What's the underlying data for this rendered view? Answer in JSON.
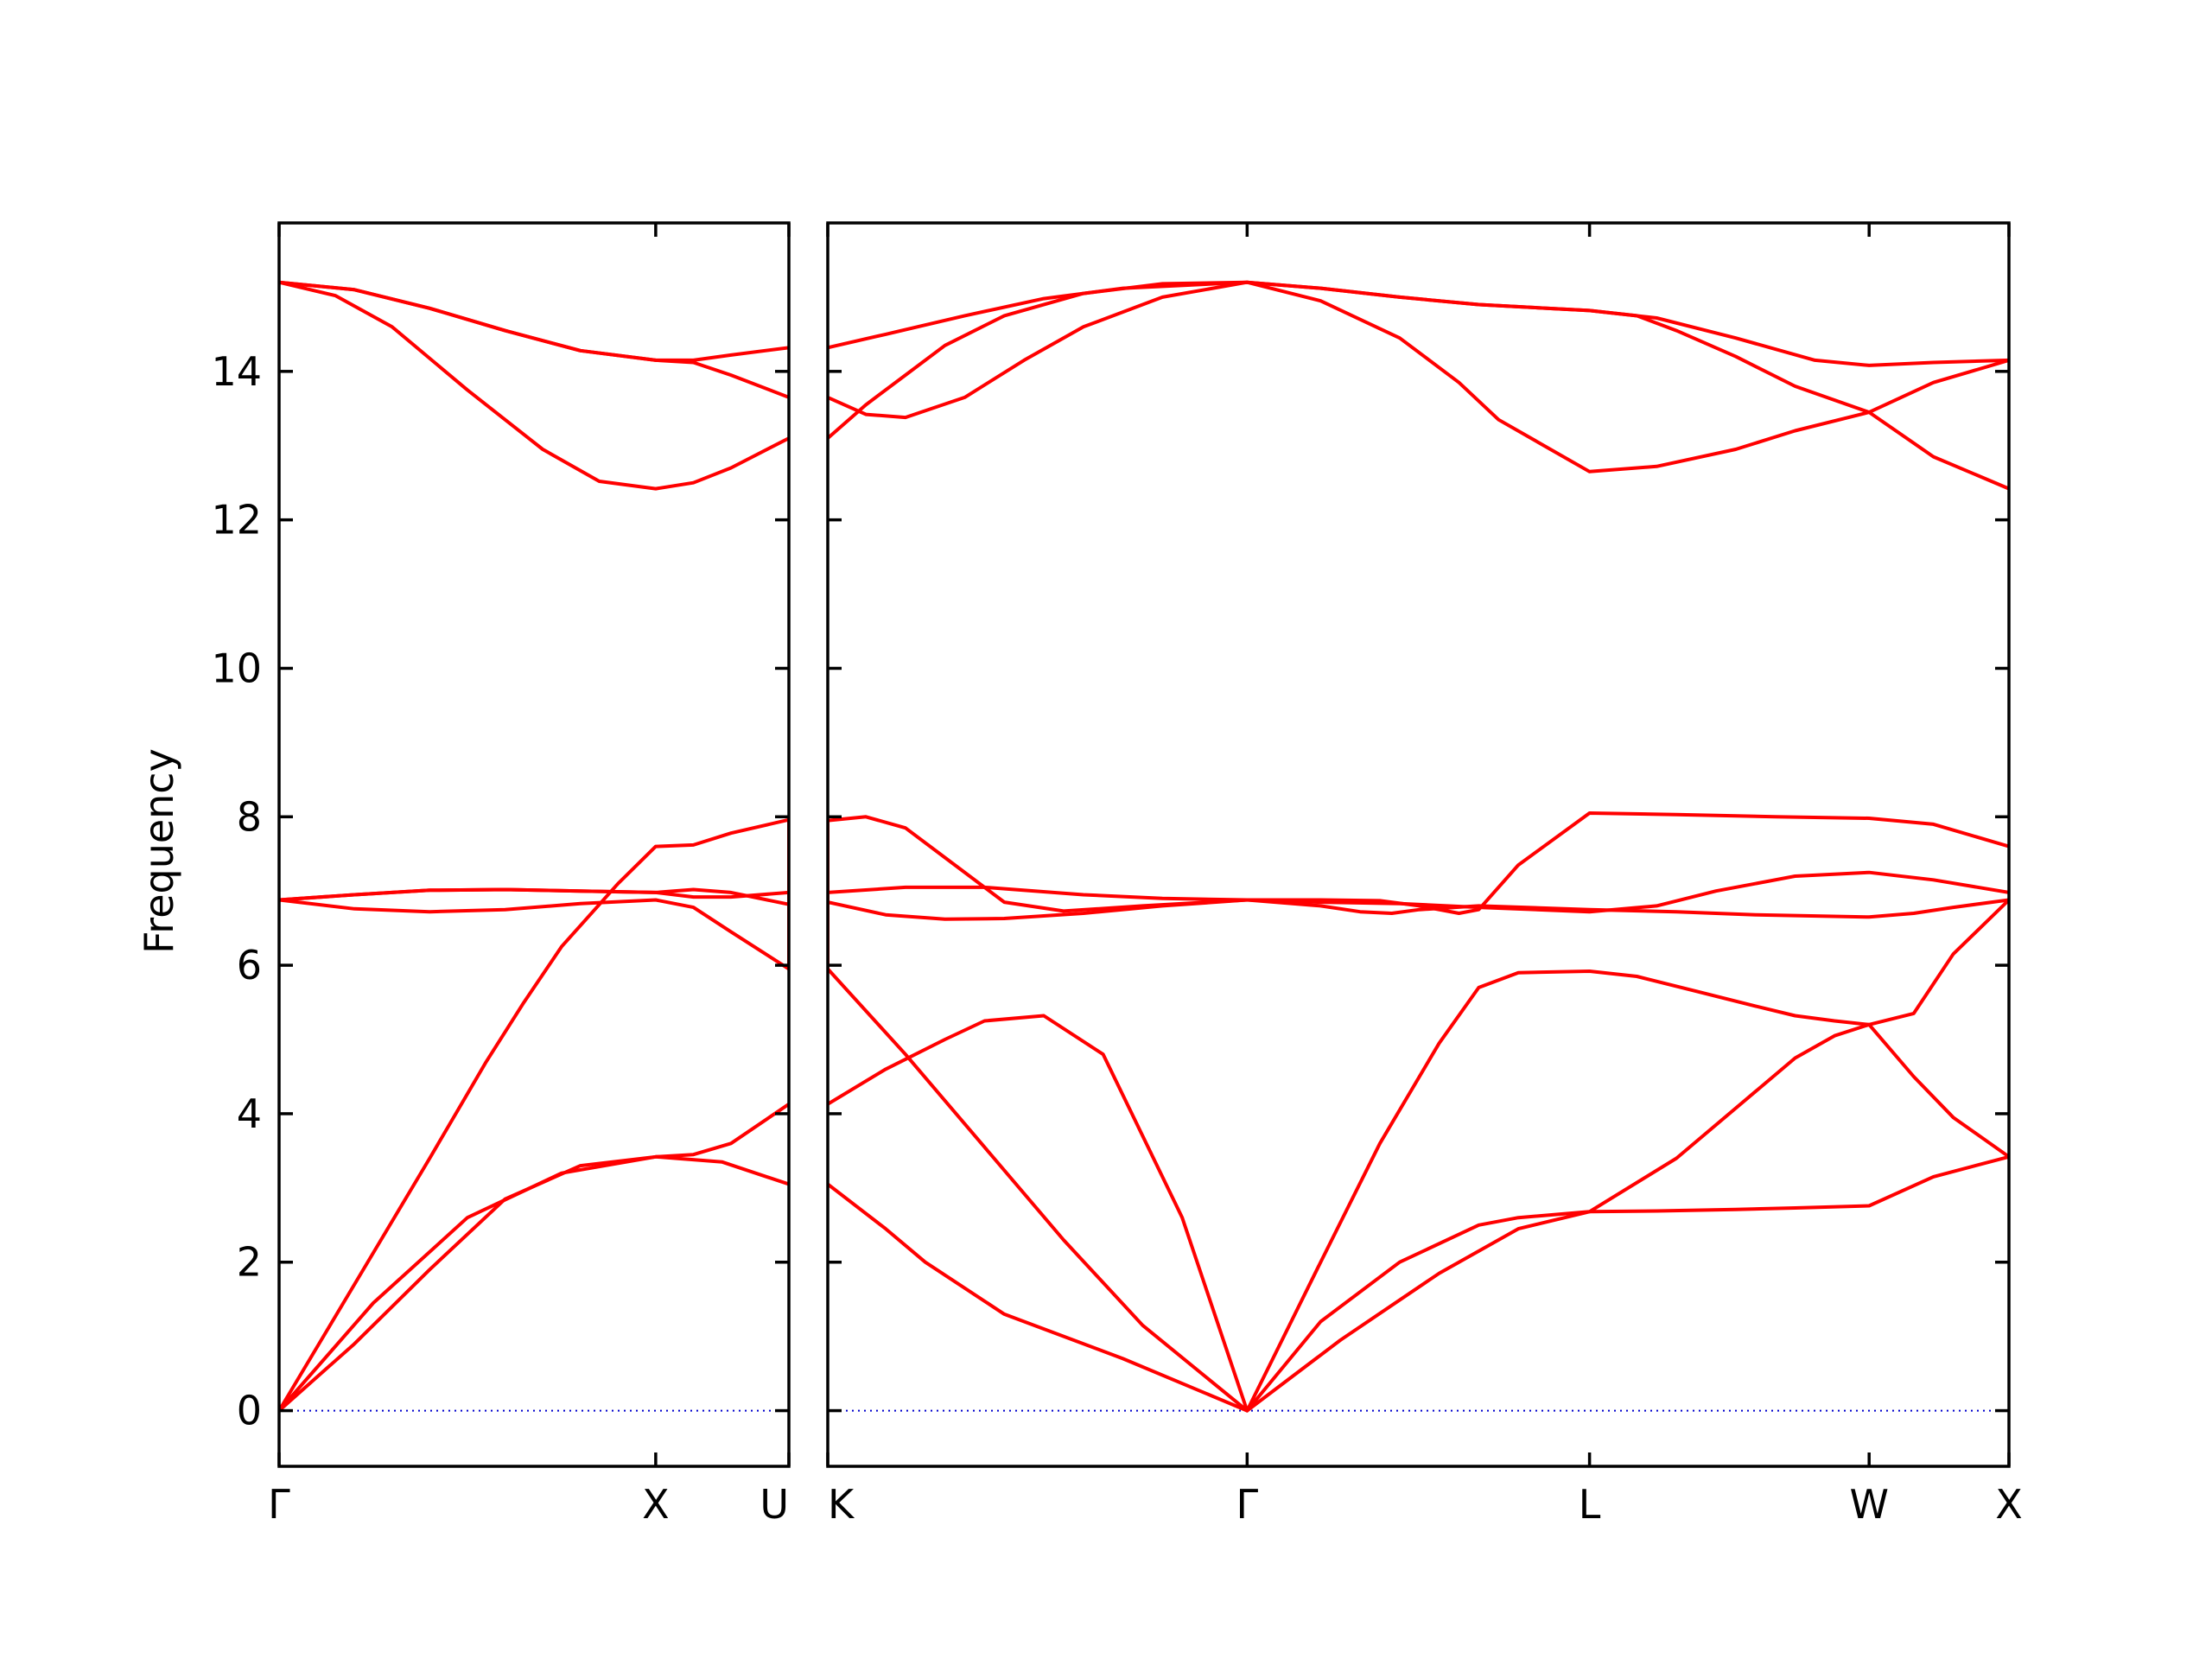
{
  "chart_data": {
    "type": "line",
    "title": "",
    "ylabel": "Frequency",
    "xlabel": "",
    "ylim": [
      -0.75,
      16.0
    ],
    "yticks": [
      0,
      2,
      4,
      6,
      8,
      10,
      12,
      14
    ],
    "grid": false,
    "colors": {
      "bands": "#ff0000",
      "zero_line": "#0000cc",
      "axes": "#000000"
    },
    "segments": [
      {
        "from": "Γ",
        "to": "X",
        "xrange": [
          0.0,
          1.0
        ]
      },
      {
        "from": "X",
        "to": "U",
        "xrange": [
          1.0,
          1.3536
        ]
      },
      {
        "from": "K",
        "to": "Γ",
        "xrange": [
          1.3536,
          2.4142
        ]
      },
      {
        "from": "Γ",
        "to": "L",
        "xrange": [
          2.4142,
          3.2802
        ]
      },
      {
        "from": "L",
        "to": "W",
        "xrange": [
          3.2802,
          3.9873
        ]
      },
      {
        "from": "W",
        "to": "X",
        "xrange": [
          3.9873,
          4.3409
        ]
      }
    ],
    "panels": [
      {
        "xrange": [
          0.0,
          1.3536
        ],
        "ticks": [
          {
            "x": 0.0,
            "label": "Γ"
          },
          {
            "x": 1.0,
            "label": "X"
          },
          {
            "x": 1.3536,
            "label": "U"
          }
        ]
      },
      {
        "xrange": [
          1.3536,
          4.3409
        ],
        "ticks": [
          {
            "x": 1.3536,
            "label": "K"
          },
          {
            "x": 2.4142,
            "label": "Γ"
          },
          {
            "x": 3.2802,
            "label": "L"
          },
          {
            "x": 3.9873,
            "label": "W"
          },
          {
            "x": 4.3409,
            "label": "X"
          }
        ]
      }
    ],
    "series": [
      {
        "x": [
          0,
          0.25,
          0.5,
          0.75,
          1.0,
          1.1768,
          1.3536,
          1.3536,
          1.5,
          1.6,
          1.8,
          2.1,
          2.4142,
          2.65,
          2.9,
          3.1,
          3.2802,
          3.45,
          3.65,
          3.8,
          3.9873,
          4.15,
          4.3409
        ],
        "y": [
          0,
          1.45,
          2.6,
          3.2,
          3.42,
          3.35,
          3.05,
          3.05,
          2.45,
          2.0,
          1.3,
          0.7,
          0,
          0.95,
          1.85,
          2.45,
          2.68,
          2.69,
          2.71,
          2.73,
          2.76,
          3.15,
          3.42
        ]
      },
      {
        "x": [
          0,
          0.2,
          0.4,
          0.55,
          0.65,
          0.75,
          0.9,
          1.0,
          1.1,
          1.2,
          1.3536,
          1.3536,
          1.55,
          1.75,
          1.95,
          2.15,
          2.4142,
          2.6,
          2.75,
          2.9,
          3.0,
          3.1,
          3.2802,
          3.4,
          3.55,
          3.7,
          3.8,
          3.9,
          3.9873,
          4.1,
          4.2,
          4.3409
        ],
        "y": [
          0,
          1.7,
          3.4,
          4.7,
          5.5,
          6.25,
          7.1,
          7.6,
          7.62,
          7.78,
          7.96,
          5.95,
          4.8,
          3.55,
          2.3,
          1.15,
          0,
          2.0,
          3.6,
          4.95,
          5.7,
          5.9,
          5.92,
          5.85,
          5.65,
          5.45,
          5.32,
          5.25,
          5.2,
          5.35,
          6.15,
          6.88
        ]
      },
      {
        "x": [
          0,
          0.2,
          0.4,
          0.6,
          0.8,
          1.0,
          1.1,
          1.2,
          1.3536,
          1.3536,
          1.5,
          1.65,
          1.75,
          1.9,
          2.05,
          2.25,
          2.4142,
          2.6,
          2.8,
          3.0,
          3.1,
          3.2802,
          3.5,
          3.7,
          3.8,
          3.9,
          3.9873,
          4.1,
          4.2,
          4.3409
        ],
        "y": [
          0,
          0.9,
          1.9,
          2.85,
          3.3,
          3.42,
          3.45,
          3.6,
          4.13,
          4.13,
          4.6,
          5.0,
          5.25,
          5.32,
          4.8,
          2.6,
          0,
          1.2,
          2.0,
          2.5,
          2.6,
          2.68,
          3.4,
          4.3,
          4.75,
          5.05,
          5.2,
          4.5,
          3.95,
          3.42
        ]
      },
      {
        "x": [
          0,
          0.2,
          0.4,
          0.6,
          0.8,
          1.0,
          1.1,
          1.2,
          1.3536,
          1.3536,
          1.5,
          1.65,
          1.8,
          2.0,
          2.2,
          2.4142,
          2.6,
          2.7,
          2.78,
          2.85,
          3.0,
          3.2802,
          3.5,
          3.7,
          3.9873,
          4.1,
          4.2,
          4.3409
        ],
        "y": [
          6.88,
          6.76,
          6.72,
          6.75,
          6.83,
          6.88,
          6.78,
          6.45,
          5.95,
          6.85,
          6.68,
          6.62,
          6.63,
          6.7,
          6.8,
          6.88,
          6.8,
          6.72,
          6.7,
          6.75,
          6.8,
          6.75,
          6.72,
          6.68,
          6.65,
          6.7,
          6.78,
          6.88
        ]
      },
      {
        "x": [
          0,
          0.2,
          0.4,
          0.6,
          0.8,
          1.0,
          1.1,
          1.2,
          1.3536,
          1.3536,
          1.45,
          1.55,
          1.65,
          1.8,
          1.95,
          2.15,
          2.4142,
          2.6,
          2.75,
          2.85,
          2.95,
          3.0,
          3.1,
          3.2802,
          3.5,
          3.75,
          3.9873,
          4.15,
          4.3409
        ],
        "y": [
          6.88,
          6.95,
          7.01,
          7.02,
          7.0,
          6.98,
          7.02,
          6.98,
          6.82,
          7.95,
          8.0,
          7.85,
          7.45,
          6.85,
          6.73,
          6.8,
          6.88,
          6.88,
          6.87,
          6.8,
          6.7,
          6.75,
          7.35,
          8.05,
          8.03,
          8.0,
          7.98,
          7.9,
          7.6
        ]
      },
      {
        "x": [
          0,
          0.2,
          0.4,
          0.6,
          0.8,
          1.0,
          1.1,
          1.2,
          1.3536,
          1.3536,
          1.55,
          1.75,
          2.0,
          2.2,
          2.4142,
          2.6,
          2.8,
          3.0,
          3.2802,
          3.45,
          3.6,
          3.8,
          3.9873,
          4.15,
          4.3409
        ],
        "y": [
          6.88,
          6.95,
          7.01,
          7.02,
          7.0,
          6.98,
          6.92,
          6.92,
          6.98,
          6.98,
          7.05,
          7.05,
          6.95,
          6.9,
          6.88,
          6.85,
          6.83,
          6.78,
          6.72,
          6.8,
          7.0,
          7.2,
          7.25,
          7.15,
          6.98
        ]
      },
      {
        "x": [
          0,
          0.15,
          0.3,
          0.5,
          0.7,
          0.85,
          1.0,
          1.1,
          1.2,
          1.3536,
          1.3536,
          1.45,
          1.55,
          1.65,
          1.8,
          2.0,
          2.2,
          2.4142,
          2.6,
          2.8,
          2.95,
          3.05,
          3.2802,
          3.45,
          3.65,
          3.8,
          3.9873,
          4.15,
          4.3409
        ],
        "y": [
          15.2,
          15.02,
          14.6,
          13.75,
          12.95,
          12.52,
          12.42,
          12.5,
          12.7,
          13.1,
          13.1,
          13.55,
          13.95,
          14.35,
          14.75,
          15.05,
          15.18,
          15.2,
          14.95,
          14.45,
          13.85,
          13.35,
          12.65,
          12.72,
          12.95,
          13.2,
          13.45,
          12.85,
          12.42
        ]
      },
      {
        "x": [
          0,
          0.2,
          0.4,
          0.6,
          0.8,
          1.0,
          1.1,
          1.2,
          1.3536,
          1.3536,
          1.45,
          1.55,
          1.7,
          1.85,
          2.0,
          2.2,
          2.4142,
          2.6,
          2.8,
          3.0,
          3.2802,
          3.4,
          3.5,
          3.65,
          3.8,
          3.9873,
          4.15,
          4.3409
        ],
        "y": [
          15.2,
          15.1,
          14.85,
          14.55,
          14.28,
          14.15,
          14.12,
          13.95,
          13.65,
          13.65,
          13.42,
          13.38,
          13.65,
          14.15,
          14.6,
          15.0,
          15.2,
          15.12,
          15.0,
          14.9,
          14.82,
          14.75,
          14.55,
          14.2,
          13.8,
          13.45,
          13.85,
          14.15
        ]
      },
      {
        "x": [
          0,
          0.2,
          0.4,
          0.6,
          0.8,
          1.0,
          1.1,
          1.2,
          1.3536,
          1.3536,
          1.5,
          1.7,
          1.9,
          2.1,
          2.4142,
          2.6,
          2.8,
          3.0,
          3.2802,
          3.45,
          3.65,
          3.85,
          3.9873,
          4.15,
          4.3409
        ],
        "y": [
          15.2,
          15.1,
          14.85,
          14.55,
          14.28,
          14.15,
          14.15,
          14.22,
          14.32,
          14.32,
          14.5,
          14.75,
          14.98,
          15.12,
          15.2,
          15.12,
          15.0,
          14.9,
          14.82,
          14.72,
          14.45,
          14.15,
          14.08,
          14.12,
          14.15
        ]
      }
    ]
  }
}
